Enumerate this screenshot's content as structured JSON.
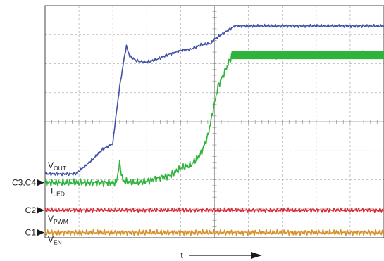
{
  "chart_data": {
    "type": "line",
    "title": "",
    "xlabel": "t",
    "ylabel": "",
    "grid": true,
    "grid_divisions": {
      "x": 10,
      "y": 8
    },
    "x_range": [
      0,
      10
    ],
    "y_range": [
      0,
      8
    ],
    "channel_markers": [
      {
        "name": "C3,C4",
        "y": 1.9
      },
      {
        "name": "C2",
        "y": 0.95
      },
      {
        "name": "C1",
        "y": 0.18
      }
    ],
    "series": [
      {
        "label_main": "V",
        "label_sub": "OUT",
        "color": "#4351a8",
        "x": [
          0,
          0.4,
          0.9,
          1.1,
          1.4,
          1.7,
          2.0,
          2.05,
          2.2,
          2.35,
          2.4,
          2.5,
          2.7,
          3.0,
          3.3,
          3.6,
          4.0,
          4.3,
          4.6,
          4.9,
          5.0,
          5.4,
          5.6,
          10.0
        ],
        "y": [
          2.2,
          2.2,
          2.2,
          2.4,
          2.7,
          3.05,
          3.25,
          3.8,
          5.2,
          6.3,
          6.6,
          6.25,
          6.1,
          6.05,
          6.15,
          6.3,
          6.45,
          6.5,
          6.65,
          6.7,
          6.85,
          7.15,
          7.3,
          7.3
        ]
      },
      {
        "label_main": "I",
        "label_sub": "LED",
        "color": "#2fb33c",
        "x": [
          0,
          1.8,
          2.1,
          2.2,
          2.3,
          2.6,
          3.0,
          3.3,
          3.7,
          4.0,
          4.3,
          4.6,
          4.8,
          5.1,
          5.5,
          5.7,
          10.0
        ],
        "y": [
          1.9,
          1.9,
          1.9,
          2.55,
          1.95,
          1.9,
          1.95,
          2.05,
          2.15,
          2.4,
          2.5,
          2.9,
          3.5,
          5.2,
          6.25,
          6.3,
          6.3
        ]
      },
      {
        "label_main": "V",
        "label_sub": "PWM",
        "color": "#d92d3a",
        "x": [
          0,
          10.0
        ],
        "y": [
          0.95,
          0.95
        ]
      },
      {
        "label_main": "V",
        "label_sub": "EN",
        "color": "#d8922c",
        "x": [
          0,
          10.0
        ],
        "y": [
          0.18,
          0.18
        ]
      }
    ]
  }
}
